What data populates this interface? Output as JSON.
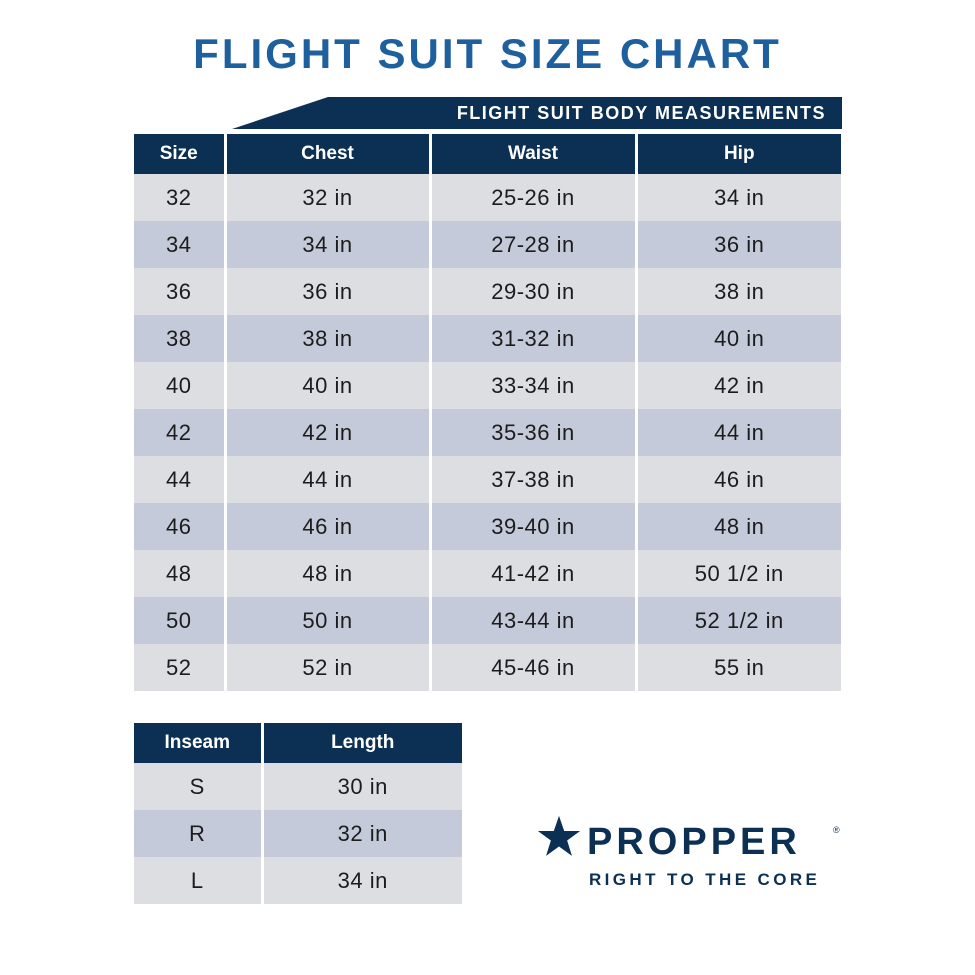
{
  "title": "FLIGHT SUIT SIZE CHART",
  "banner": "FLIGHT SUIT BODY MEASUREMENTS",
  "colors": {
    "title": "#1e5f9e",
    "navy": "#0b3054",
    "row_light": "#dcdee1",
    "row_blue": "#c4cad9"
  },
  "body_table": {
    "headers": [
      "Size",
      "Chest",
      "Waist",
      "Hip"
    ],
    "rows": [
      [
        "32",
        "32 in",
        "25-26 in",
        "34 in"
      ],
      [
        "34",
        "34 in",
        "27-28 in",
        "36 in"
      ],
      [
        "36",
        "36 in",
        "29-30 in",
        "38 in"
      ],
      [
        "38",
        "38 in",
        "31-32 in",
        "40 in"
      ],
      [
        "40",
        "40 in",
        "33-34 in",
        "42 in"
      ],
      [
        "42",
        "42 in",
        "35-36 in",
        "44 in"
      ],
      [
        "44",
        "44 in",
        "37-38 in",
        "46 in"
      ],
      [
        "46",
        "46 in",
        "39-40 in",
        "48 in"
      ],
      [
        "48",
        "48 in",
        "41-42 in",
        "50 1/2 in"
      ],
      [
        "50",
        "50 in",
        "43-44 in",
        "52 1/2 in"
      ],
      [
        "52",
        "52 in",
        "45-46 in",
        "55 in"
      ]
    ]
  },
  "inseam_table": {
    "headers": [
      "Inseam",
      "Length"
    ],
    "rows": [
      [
        "S",
        "30 in"
      ],
      [
        "R",
        "32 in"
      ],
      [
        "L",
        "34 in"
      ]
    ]
  },
  "logo": {
    "icon": "star-icon",
    "brand": "PROPPER",
    "registered": "®",
    "tagline": "RIGHT TO THE CORE"
  }
}
